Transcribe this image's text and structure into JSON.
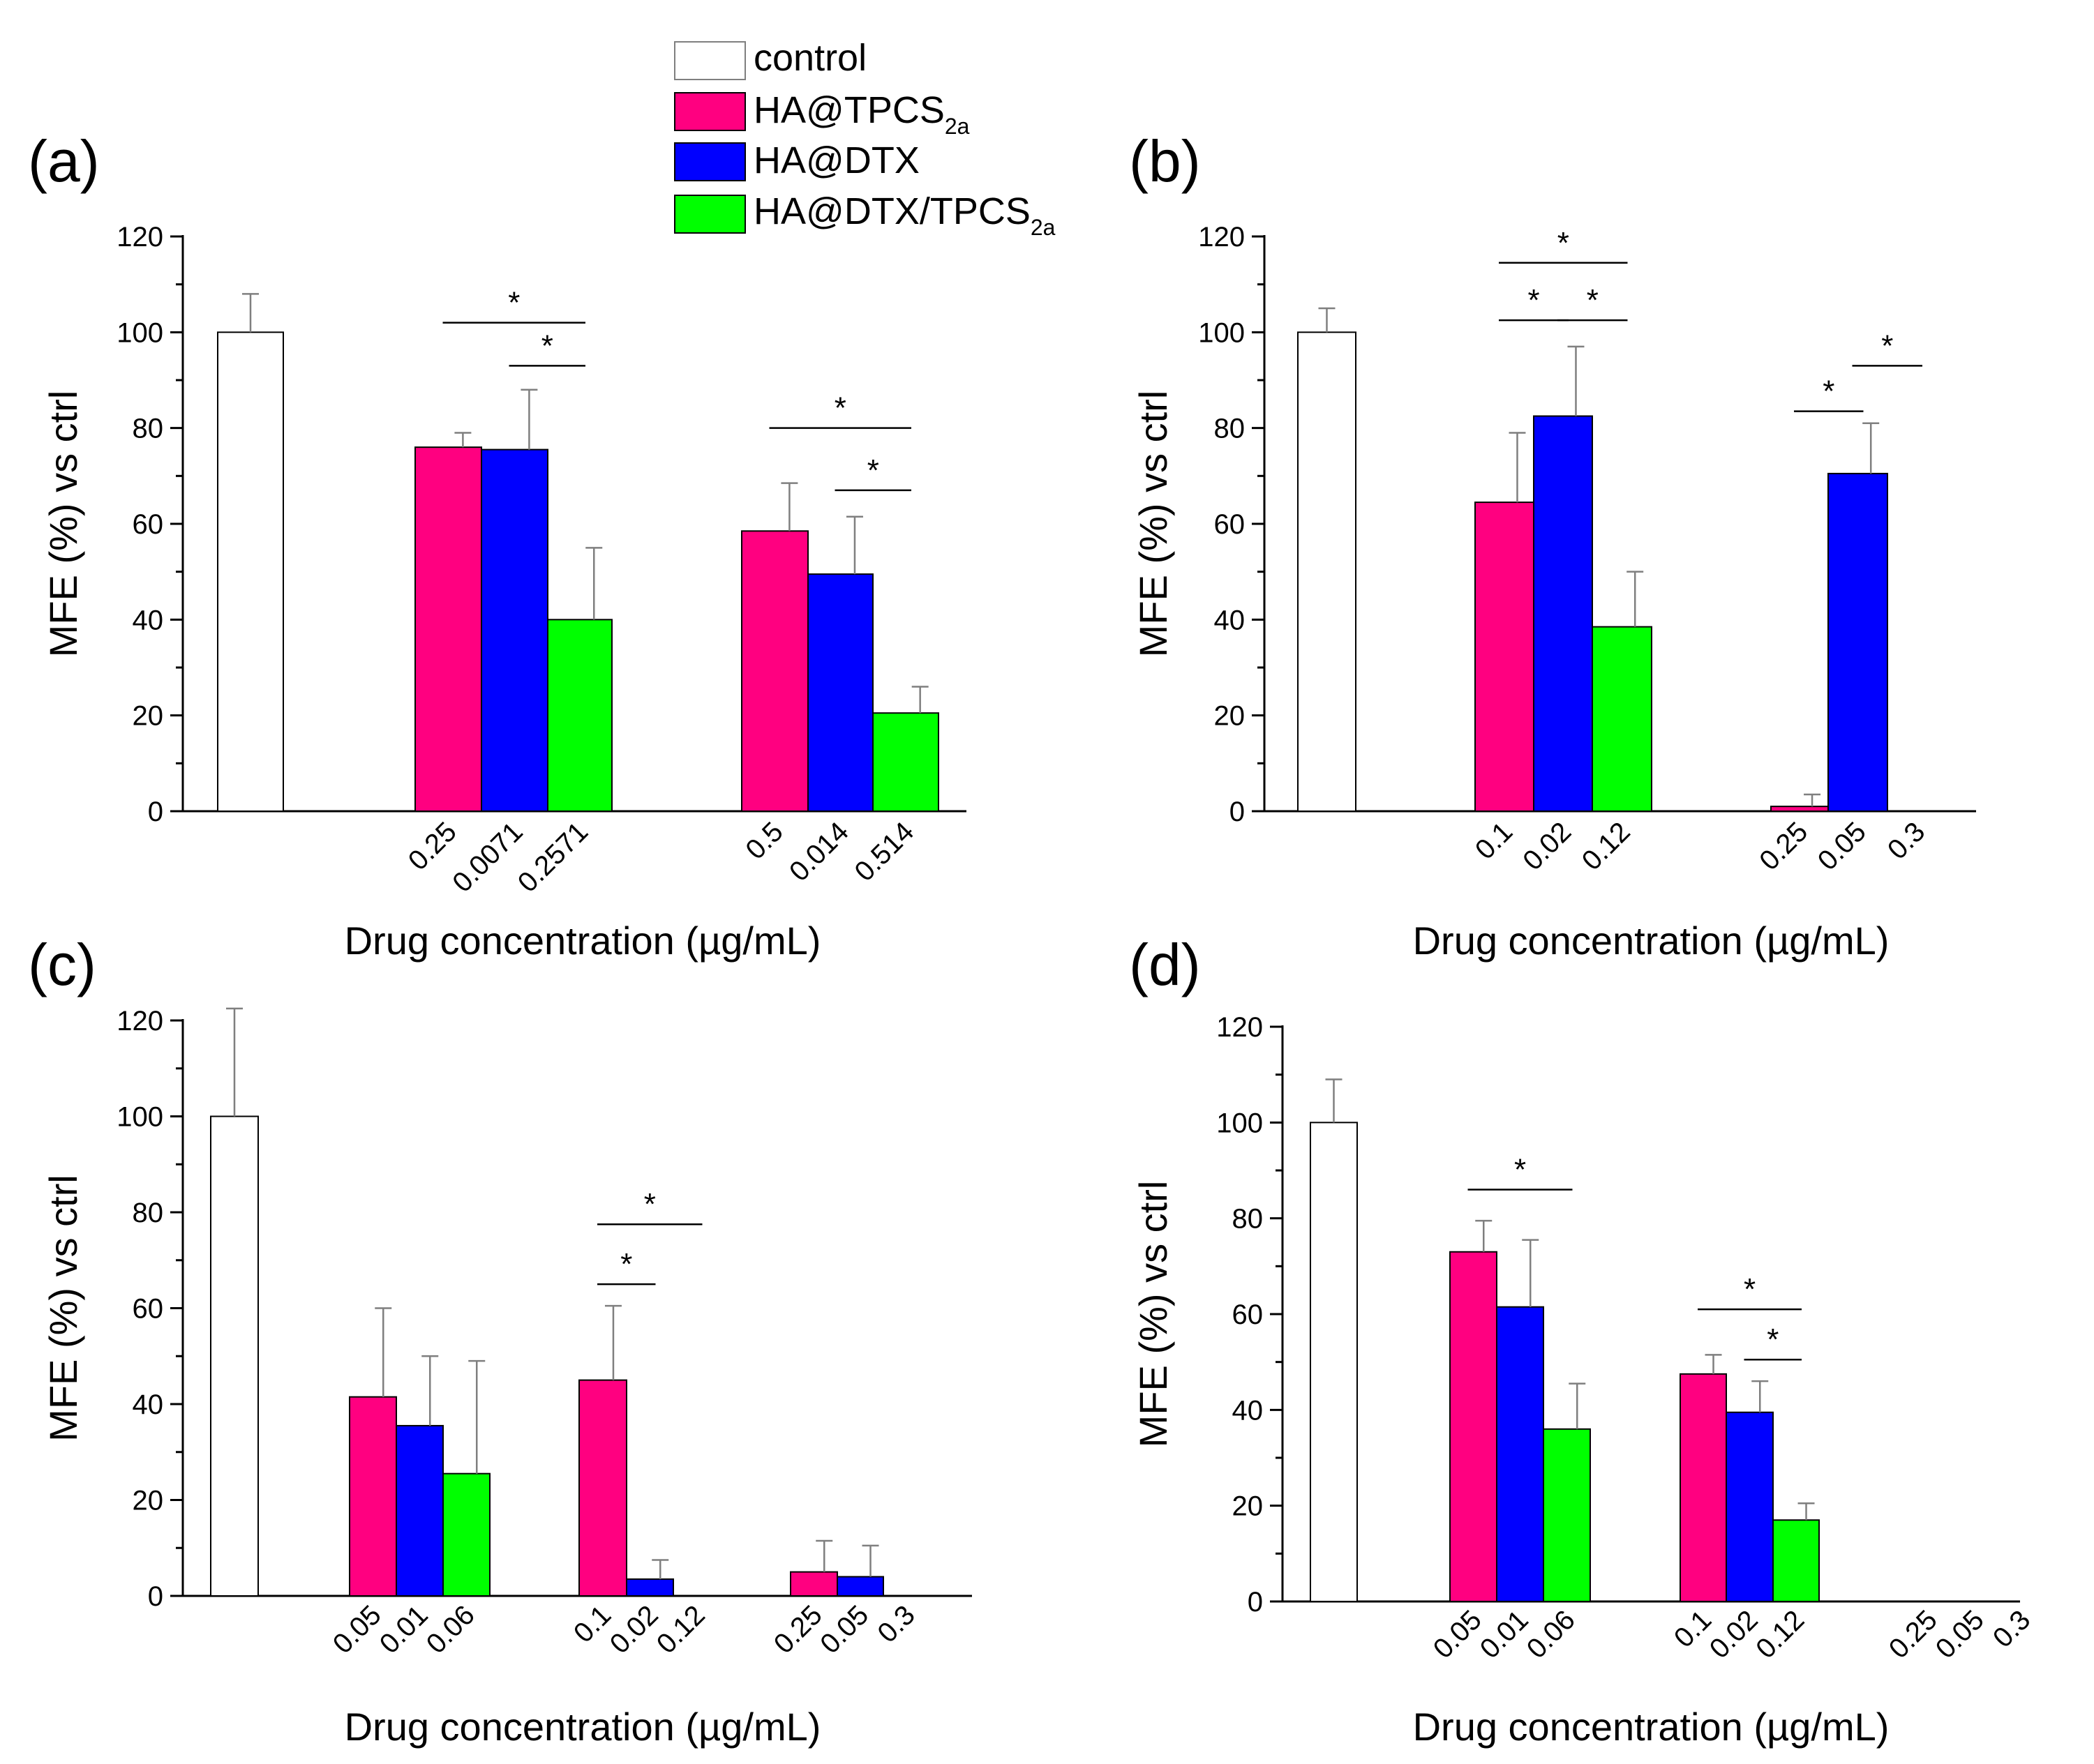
{
  "legend": {
    "entries": [
      {
        "label": "control",
        "sub": "",
        "color": "#ffffff"
      },
      {
        "label": "HA@TPCS",
        "sub": "2a",
        "color": "#ff0080"
      },
      {
        "label": "HA@DTX",
        "sub": "",
        "color": "#0000ff"
      },
      {
        "label": "HA@DTX/TPCS",
        "sub": "2a",
        "color": "#00ff00"
      }
    ]
  },
  "colors": {
    "control": "#ffffff",
    "tpcs": "#ff0080",
    "dtx": "#0000ff",
    "combo": "#00ff00",
    "axis": "#000000",
    "control_stroke_gray": "#7f7f7f"
  },
  "chart_data": [
    {
      "panel": "(a)",
      "type": "bar",
      "ylabel": "MFE (%) vs ctrl",
      "xlabel": "Drug concentration (µg/mL)",
      "ylim": [
        0,
        120
      ],
      "yticks": [
        "0",
        "20",
        "40",
        "60",
        "80",
        "100",
        "120"
      ],
      "control": {
        "value": 100,
        "err": 8
      },
      "groups": [
        {
          "bars": [
            {
              "series": "tpcs",
              "label": "0.25",
              "value": 76,
              "err": 3
            },
            {
              "series": "dtx",
              "label": "0.0071",
              "value": 75.5,
              "err": 12.5
            },
            {
              "series": "combo",
              "label": "0.2571",
              "value": 40,
              "err": 15
            }
          ]
        },
        {
          "bars": [
            {
              "series": "tpcs",
              "label": "0.5",
              "value": 58.5,
              "err": 10
            },
            {
              "series": "dtx",
              "label": "0.014",
              "value": 49.5,
              "err": 12
            },
            {
              "series": "combo",
              "label": "0.514",
              "value": 20.5,
              "err": 5.5
            }
          ]
        }
      ],
      "significance": [
        {
          "group": 0,
          "from": 0,
          "to": 2,
          "y": 102,
          "label": "*"
        },
        {
          "group": 0,
          "from": 1,
          "to": 2,
          "y": 93,
          "label": "*"
        },
        {
          "group": 1,
          "from": 0,
          "to": 2,
          "y": 80,
          "label": "*"
        },
        {
          "group": 1,
          "from": 1,
          "to": 2,
          "y": 67,
          "label": "*"
        }
      ]
    },
    {
      "panel": "(b)",
      "type": "bar",
      "ylabel": "MFE (%) vs ctrl",
      "xlabel": "Drug concentration (µg/mL)",
      "ylim": [
        0,
        120
      ],
      "yticks": [
        "0",
        "20",
        "40",
        "60",
        "80",
        "100",
        "120"
      ],
      "control": {
        "value": 100,
        "err": 5
      },
      "groups": [
        {
          "bars": [
            {
              "series": "tpcs",
              "label": "0.1",
              "value": 64.5,
              "err": 14.5
            },
            {
              "series": "dtx",
              "label": "0.02",
              "value": 82.5,
              "err": 14.5
            },
            {
              "series": "combo",
              "label": "0.12",
              "value": 38.5,
              "err": 11.5
            }
          ]
        },
        {
          "bars": [
            {
              "series": "tpcs",
              "label": "0.25",
              "value": 1,
              "err": 2.5
            },
            {
              "series": "dtx",
              "label": "0.05",
              "value": 70.5,
              "err": 10.5
            },
            {
              "series": "combo",
              "label": "0.3",
              "value": 0,
              "err": 0
            }
          ]
        }
      ],
      "significance": [
        {
          "group": 0,
          "from": 0,
          "to": 2,
          "y": 114.5,
          "label": "*"
        },
        {
          "group": 0,
          "from": 0,
          "to": 1,
          "y": 102.5,
          "label": "*"
        },
        {
          "group": 0,
          "from": 1,
          "to": 2,
          "y": 102.5,
          "label": "*"
        },
        {
          "group": 1,
          "from": 1,
          "to": 2,
          "y": 93,
          "label": "*"
        },
        {
          "group": 1,
          "from": 0,
          "to": 1,
          "y": 83.5,
          "label": "*"
        }
      ]
    },
    {
      "panel": "(c)",
      "type": "bar",
      "ylabel": "MFE (%) vs ctrl",
      "xlabel": "Drug concentration (µg/mL)",
      "ylim": [
        0,
        120
      ],
      "yticks": [
        "0",
        "20",
        "40",
        "60",
        "80",
        "100",
        "120"
      ],
      "control": {
        "value": 100,
        "err": 22.5
      },
      "groups": [
        {
          "bars": [
            {
              "series": "tpcs",
              "label": "0.05",
              "value": 41.5,
              "err": 18.5
            },
            {
              "series": "dtx",
              "label": "0.01",
              "value": 35.5,
              "err": 14.5
            },
            {
              "series": "combo",
              "label": "0.06",
              "value": 25.5,
              "err": 23.5
            }
          ]
        },
        {
          "bars": [
            {
              "series": "tpcs",
              "label": "0.1",
              "value": 45,
              "err": 15.5
            },
            {
              "series": "dtx",
              "label": "0.02",
              "value": 3.5,
              "err": 4
            },
            {
              "series": "combo",
              "label": "0.12",
              "value": 0,
              "err": 0
            }
          ]
        },
        {
          "bars": [
            {
              "series": "tpcs",
              "label": "0.25",
              "value": 5,
              "err": 6.5
            },
            {
              "series": "dtx",
              "label": "0.05",
              "value": 4,
              "err": 6.5
            },
            {
              "series": "combo",
              "label": "0.3",
              "value": 0,
              "err": 0
            }
          ]
        }
      ],
      "significance": [
        {
          "group": 1,
          "from": 0,
          "to": 2,
          "y": 77.5,
          "label": "*"
        },
        {
          "group": 1,
          "from": 0,
          "to": 1,
          "y": 65,
          "label": "*"
        }
      ]
    },
    {
      "panel": "(d)",
      "type": "bar",
      "ylabel": "MFE (%) vs ctrl",
      "xlabel": "Drug concentration (µg/mL)",
      "ylim": [
        0,
        120
      ],
      "yticks": [
        "0",
        "20",
        "40",
        "60",
        "80",
        "100",
        "120"
      ],
      "control": {
        "value": 100,
        "err": 9
      },
      "groups": [
        {
          "bars": [
            {
              "series": "tpcs",
              "label": "0.05",
              "value": 73,
              "err": 6.5
            },
            {
              "series": "dtx",
              "label": "0.01",
              "value": 61.5,
              "err": 14
            },
            {
              "series": "combo",
              "label": "0.06",
              "value": 36,
              "err": 9.5
            }
          ]
        },
        {
          "bars": [
            {
              "series": "tpcs",
              "label": "0.1",
              "value": 47.5,
              "err": 4
            },
            {
              "series": "dtx",
              "label": "0.02",
              "value": 39.5,
              "err": 6.5
            },
            {
              "series": "combo",
              "label": "0.12",
              "value": 17,
              "err": 3.5
            }
          ]
        },
        {
          "bars": [
            {
              "series": "tpcs",
              "label": "0.25",
              "value": 0,
              "err": 0
            },
            {
              "series": "dtx",
              "label": "0.05",
              "value": 0,
              "err": 0
            },
            {
              "series": "combo",
              "label": "0.3",
              "value": 0,
              "err": 0
            }
          ]
        }
      ],
      "significance": [
        {
          "group": 0,
          "from": 0,
          "to": 2,
          "y": 86,
          "label": "*"
        },
        {
          "group": 1,
          "from": 0,
          "to": 2,
          "y": 61,
          "label": "*"
        },
        {
          "group": 1,
          "from": 1,
          "to": 2,
          "y": 50.5,
          "label": "*"
        }
      ]
    }
  ]
}
